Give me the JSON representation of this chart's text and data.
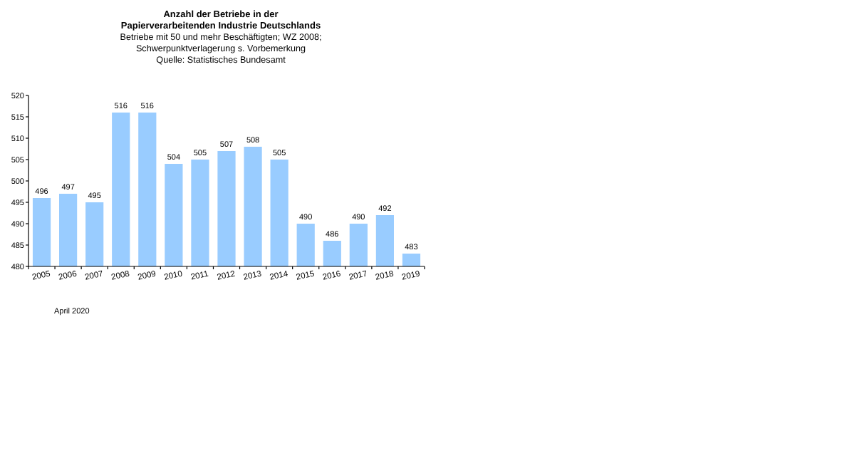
{
  "chart_data": {
    "type": "bar",
    "title": "Anzahl der Betriebe in der\nPapierverarbeitenden Industrie Deutschlands",
    "subtitle": "Betriebe mit 50 und mehr Beschäftigten;  WZ 2008;\nSchwerpunktverlagerung  s. Vorbemerkung\nQuelle:  Statistisches Bundesamt",
    "categories": [
      "2005",
      "2006",
      "2007",
      "2008",
      "2009",
      "2010",
      "2011",
      "2012",
      "2013",
      "2014",
      "2015",
      "2016",
      "2017",
      "2018",
      "2019"
    ],
    "values": [
      496,
      497,
      495,
      516,
      516,
      504,
      505,
      507,
      508,
      505,
      490,
      486,
      490,
      492,
      483
    ],
    "color": "#99ccff",
    "ylim": [
      480,
      520
    ],
    "yticks": [
      480,
      485,
      490,
      495,
      500,
      505,
      510,
      515,
      520
    ],
    "data_labels": true,
    "grid": false,
    "annotations": [
      "April 2020"
    ]
  }
}
